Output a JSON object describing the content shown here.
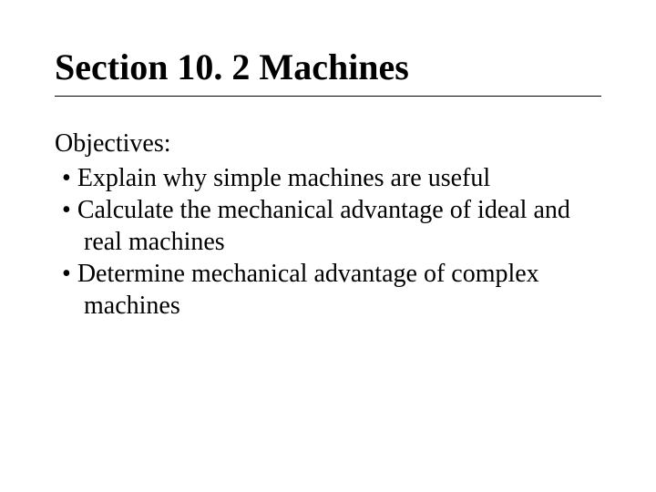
{
  "title": "Section 10. 2 Machines",
  "subheading": "Objectives:",
  "bullets": [
    "Explain why simple machines are useful",
    "Calculate the mechanical advantage of ideal and real machines",
    "Determine mechanical advantage of complex machines"
  ],
  "colors": {
    "background": "#ffffff",
    "text": "#000000",
    "underline": "#000000"
  },
  "typography": {
    "font_family": "Times New Roman",
    "title_fontsize": 40,
    "title_weight": "bold",
    "body_fontsize": 28,
    "body_weight": "normal"
  }
}
